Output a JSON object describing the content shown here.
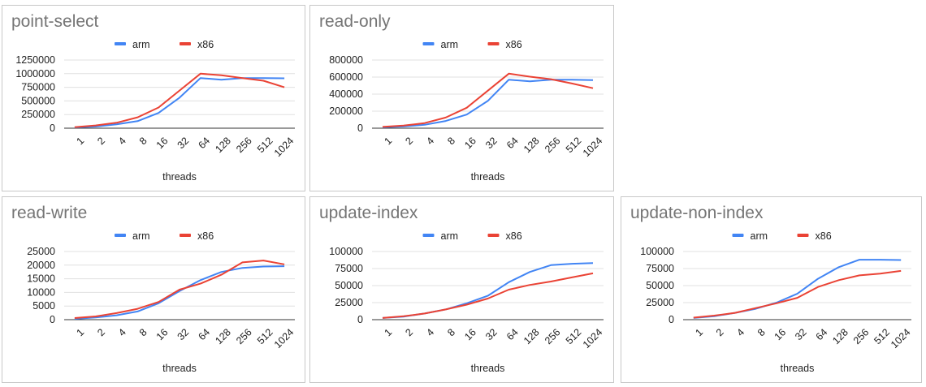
{
  "colors": {
    "arm": "#4285f4",
    "x86": "#ea4335",
    "grid": "#e0e0e0",
    "axis": "#333333",
    "text": "#222222",
    "title": "#757575"
  },
  "charts": [
    {
      "panel_id": "point-select",
      "chart_data": {
        "type": "line",
        "title": "point-select",
        "xlabel": "threads",
        "ylabel": "",
        "categories": [
          "1",
          "2",
          "4",
          "8",
          "16",
          "32",
          "64",
          "128",
          "256",
          "512",
          "1024"
        ],
        "yticks": [
          "1250000",
          "1000000",
          "750000",
          "500000",
          "250000",
          "0"
        ],
        "ylim": [
          0,
          1250000
        ],
        "grid": true,
        "legend_position": "top",
        "series": [
          {
            "name": "arm",
            "color_key": "arm",
            "values": [
              15000,
              30000,
              70000,
              130000,
              280000,
              560000,
              920000,
              890000,
              920000,
              920000,
              915000
            ]
          },
          {
            "name": "x86",
            "color_key": "x86",
            "values": [
              20000,
              50000,
              100000,
              200000,
              380000,
              690000,
              1000000,
              970000,
              920000,
              870000,
              750000
            ]
          }
        ]
      }
    },
    {
      "panel_id": "read-only",
      "chart_data": {
        "type": "line",
        "title": "read-only",
        "xlabel": "threads",
        "ylabel": "",
        "categories": [
          "1",
          "2",
          "4",
          "8",
          "16",
          "32",
          "64",
          "128",
          "256",
          "512",
          "1024"
        ],
        "yticks": [
          "800000",
          "600000",
          "400000",
          "200000",
          "0"
        ],
        "ylim": [
          0,
          800000
        ],
        "grid": true,
        "legend_position": "top",
        "series": [
          {
            "name": "arm",
            "color_key": "arm",
            "values": [
              10000,
              20000,
              40000,
              85000,
              160000,
              320000,
              570000,
              550000,
              570000,
              570000,
              565000
            ]
          },
          {
            "name": "x86",
            "color_key": "x86",
            "values": [
              15000,
              30000,
              60000,
              125000,
              240000,
              440000,
              640000,
              605000,
              575000,
              525000,
              470000
            ]
          }
        ]
      }
    },
    {
      "panel_id": "read-write",
      "chart_data": {
        "type": "line",
        "title": "read-write",
        "xlabel": "threads",
        "ylabel": "",
        "categories": [
          "1",
          "2",
          "4",
          "8",
          "16",
          "32",
          "64",
          "128",
          "256",
          "512",
          "1024"
        ],
        "yticks": [
          "25000",
          "20000",
          "15000",
          "10000",
          "5000",
          "0"
        ],
        "ylim": [
          0,
          25000
        ],
        "grid": true,
        "legend_position": "top",
        "series": [
          {
            "name": "arm",
            "color_key": "arm",
            "values": [
              300,
              800,
              1600,
              3000,
              6000,
              10500,
              14500,
              17500,
              19000,
              19500,
              19600
            ]
          },
          {
            "name": "x86",
            "color_key": "x86",
            "values": [
              600,
              1200,
              2400,
              4000,
              6500,
              11000,
              13200,
              16500,
              21000,
              21700,
              20300
            ]
          }
        ]
      }
    },
    {
      "panel_id": "update-index",
      "chart_data": {
        "type": "line",
        "title": "update-index",
        "xlabel": "threads",
        "ylabel": "",
        "categories": [
          "1",
          "2",
          "4",
          "8",
          "16",
          "32",
          "64",
          "128",
          "256",
          "512",
          "1024"
        ],
        "yticks": [
          "100000",
          "75000",
          "50000",
          "25000",
          "0"
        ],
        "ylim": [
          0,
          100000
        ],
        "grid": true,
        "legend_position": "top",
        "series": [
          {
            "name": "arm",
            "color_key": "arm",
            "values": [
              2500,
              4500,
              9000,
              15000,
              24000,
              35000,
              55000,
              70000,
              80000,
              82000,
              83000
            ]
          },
          {
            "name": "x86",
            "color_key": "x86",
            "values": [
              2500,
              5000,
              9000,
              15000,
              22000,
              31000,
              44000,
              51000,
              56000,
              62000,
              68000
            ]
          }
        ]
      }
    },
    {
      "panel_id": "update-non-index",
      "chart_data": {
        "type": "line",
        "title": "update-non-index",
        "xlabel": "threads",
        "ylabel": "",
        "categories": [
          "1",
          "2",
          "4",
          "8",
          "16",
          "32",
          "64",
          "128",
          "256",
          "512",
          "1024"
        ],
        "yticks": [
          "100000",
          "75000",
          "50000",
          "25000",
          "0"
        ],
        "ylim": [
          0,
          100000
        ],
        "grid": true,
        "legend_position": "top",
        "series": [
          {
            "name": "arm",
            "color_key": "arm",
            "values": [
              2500,
              5000,
              10000,
              16000,
              25000,
              38000,
              60000,
              77000,
              88000,
              88000,
              87500
            ]
          },
          {
            "name": "x86",
            "color_key": "x86",
            "values": [
              3000,
              6000,
              10000,
              17000,
              24000,
              32000,
              48000,
              58000,
              65000,
              67500,
              71500
            ]
          }
        ]
      }
    }
  ]
}
